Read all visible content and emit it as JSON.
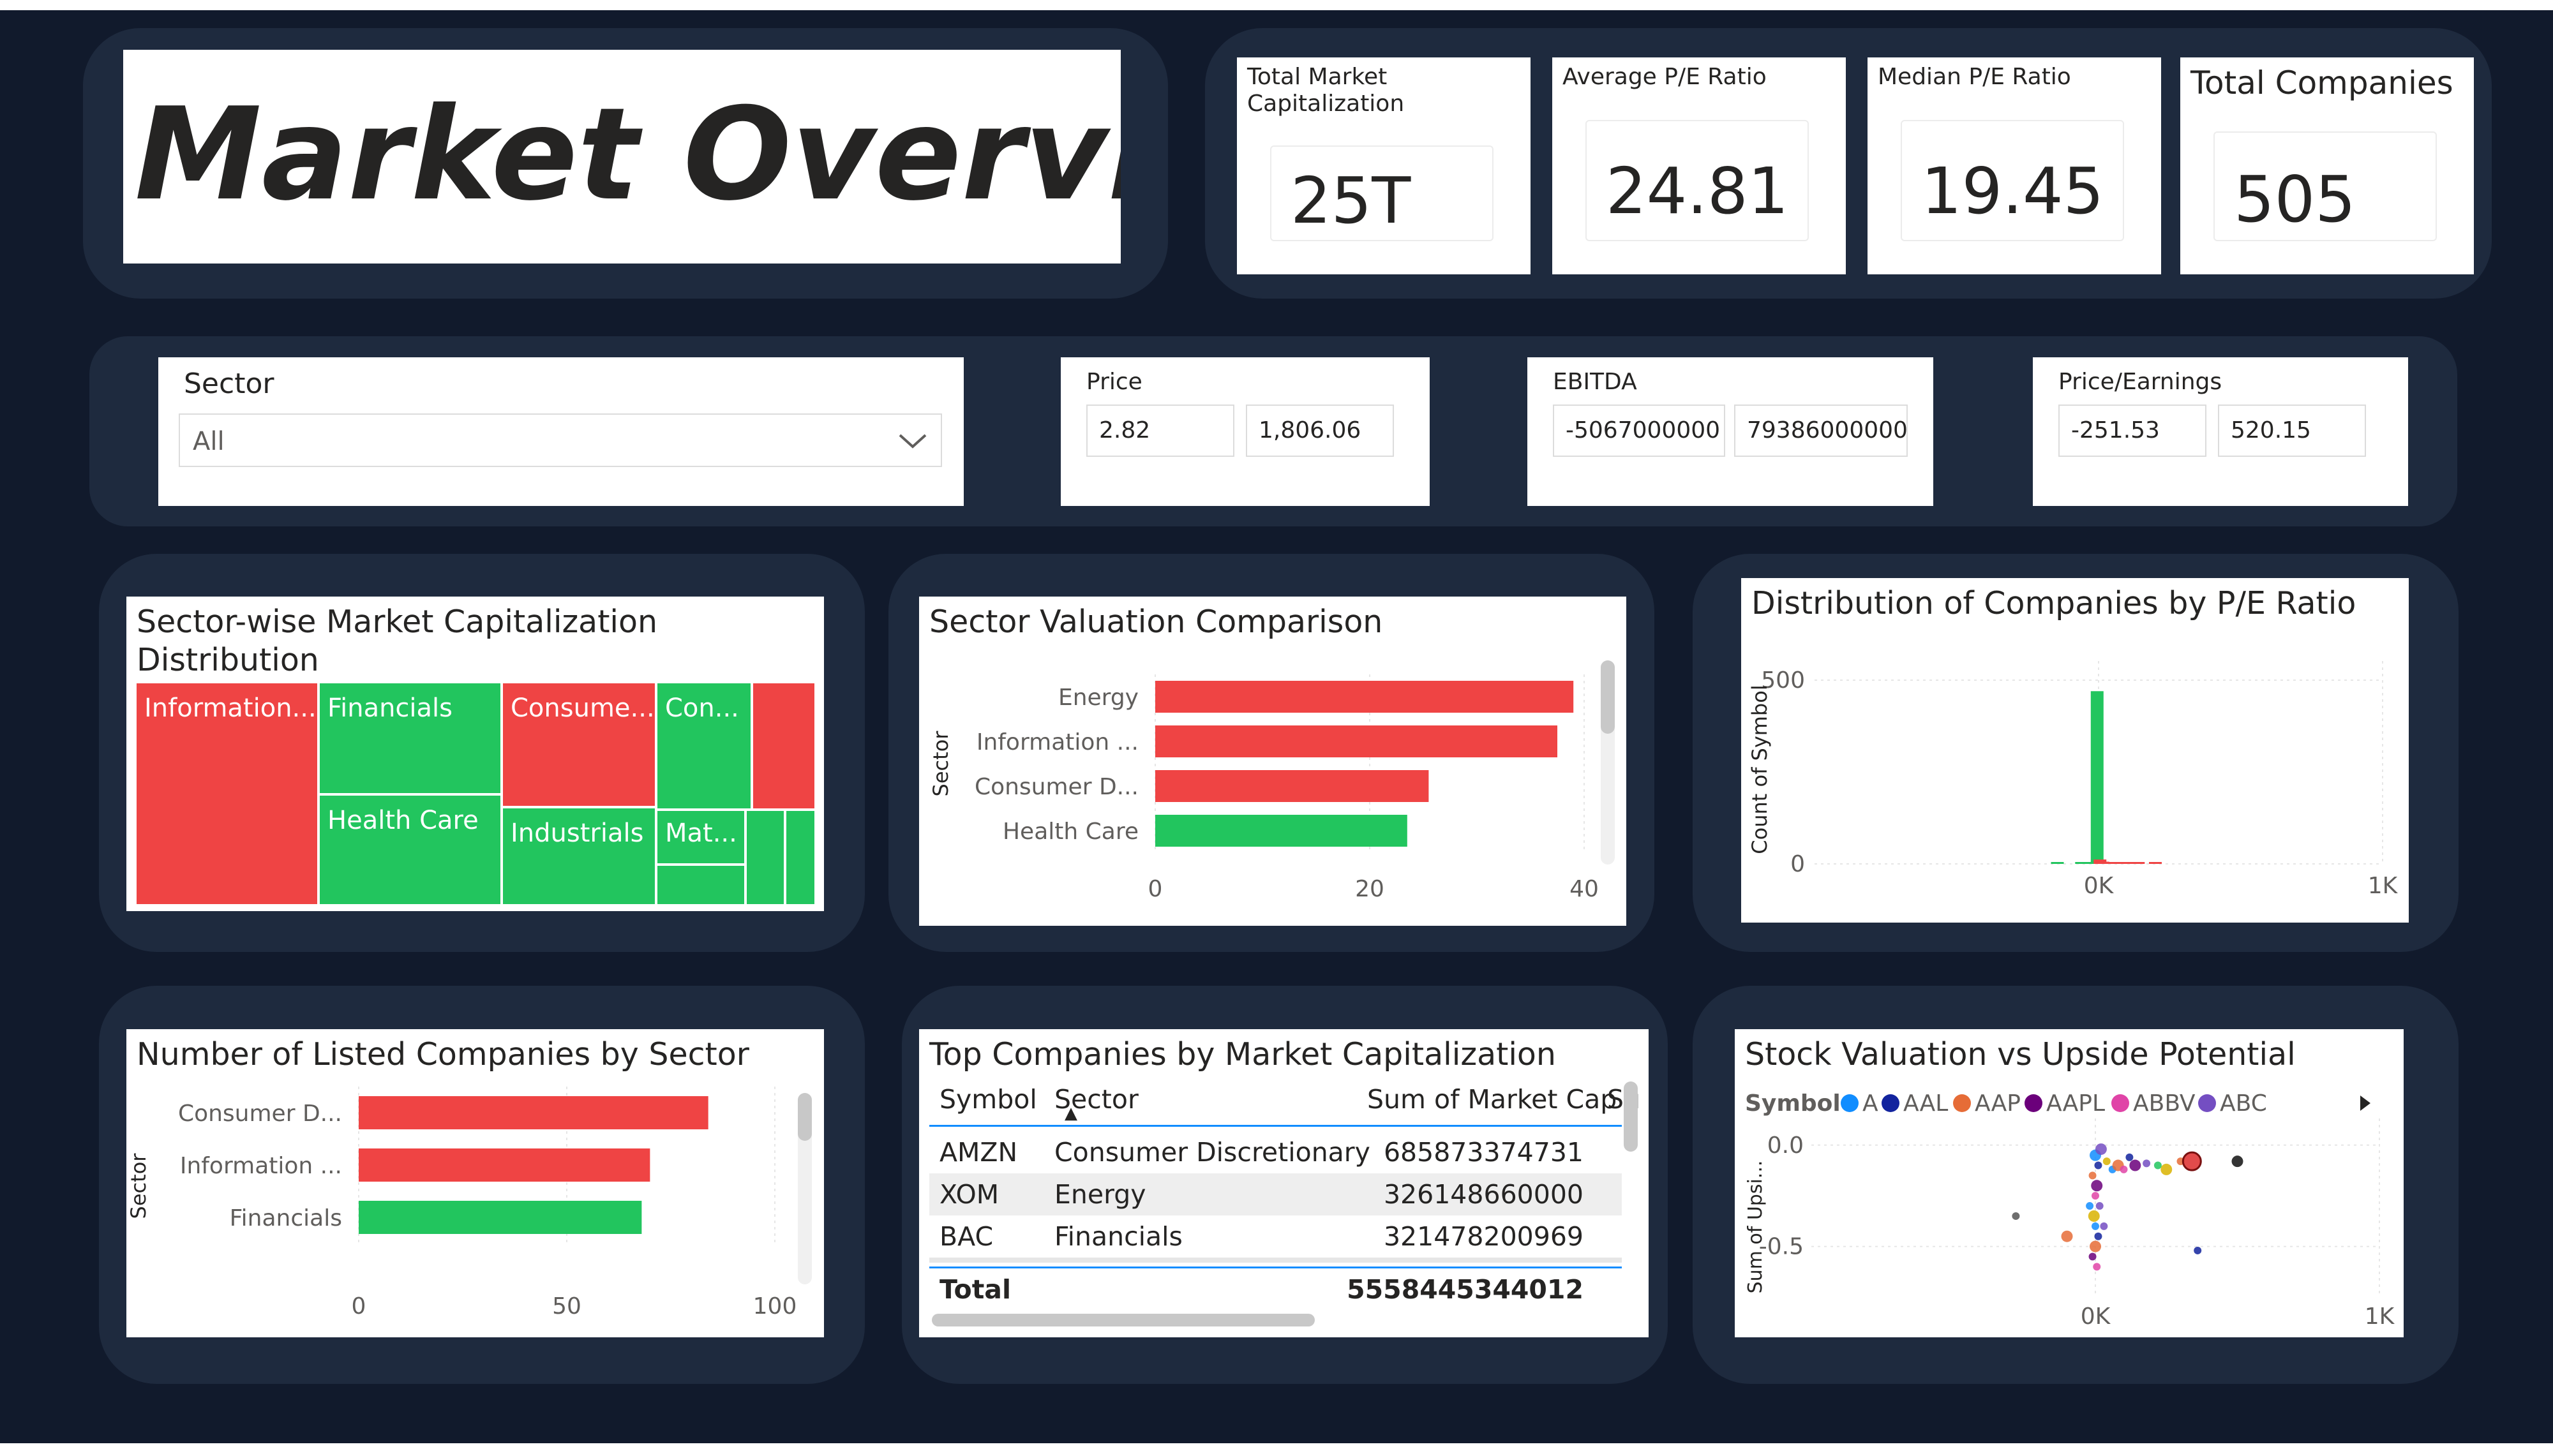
{
  "title": "Market Overview",
  "kpis": [
    {
      "label": "Total Market Capitalization",
      "value": "25T"
    },
    {
      "label": "Average P/E Ratio",
      "value": "24.81"
    },
    {
      "label": "Median P/E Ratio",
      "value": "19.45"
    },
    {
      "label": "Total Companies",
      "value": "505"
    }
  ],
  "slicers": {
    "sector": {
      "label": "Sector",
      "value": "All"
    },
    "price": {
      "label": "Price",
      "min": "2.82",
      "max": "1,806.06"
    },
    "ebitda": {
      "label": "EBITDA",
      "min": "-5067000000",
      "max": "79386000000"
    },
    "pe": {
      "label": "Price/Earnings",
      "min": "-251.53",
      "max": "520.15"
    }
  },
  "colors": {
    "red": "#ef4444",
    "green": "#22c55e",
    "panel": "#1e2a3e",
    "background": "#111a2c"
  },
  "treemap": {
    "title": "Sector-wise Market Capitalization Distribution",
    "tiles": [
      {
        "label": "Information...",
        "color": "red"
      },
      {
        "label": "Financials",
        "color": "green"
      },
      {
        "label": "Health Care",
        "color": "green"
      },
      {
        "label": "Consume...",
        "color": "red"
      },
      {
        "label": "Industrials",
        "color": "green"
      },
      {
        "label": "Con...",
        "color": "green"
      },
      {
        "label": "",
        "color": "red"
      },
      {
        "label": "Mat...",
        "color": "green"
      },
      {
        "label": "",
        "color": "green"
      },
      {
        "label": "",
        "color": "green"
      },
      {
        "label": "",
        "color": "green"
      }
    ]
  },
  "chart_data": [
    {
      "type": "bar",
      "orientation": "horizontal",
      "title": "Sector Valuation Comparison",
      "ylabel": "Sector",
      "categories": [
        "Energy",
        "Information ...",
        "Consumer D...",
        "Health Care"
      ],
      "values": [
        39,
        37.5,
        25.5,
        23.5
      ],
      "bar_colors": [
        "red",
        "red",
        "red",
        "green"
      ],
      "xlim": [
        0,
        40
      ],
      "xticks": [
        "0",
        "20",
        "40"
      ]
    },
    {
      "type": "bar",
      "title": "Distribution of Companies by P/E Ratio",
      "ylabel": "Count of Symbol",
      "x": [
        -0.145,
        -0.06,
        -0.035,
        -0.015,
        -0.005,
        0.005,
        0.015,
        0.04,
        0.06,
        0.08,
        0.1,
        0.12,
        0.14,
        0.2
      ],
      "values": [
        2,
        2,
        2,
        3,
        470,
        12,
        6,
        4,
        3,
        2,
        2,
        2,
        1,
        4
      ],
      "bar_colors": [
        "green",
        "green",
        "green",
        "green",
        "green",
        "red",
        "red",
        "red",
        "red",
        "red",
        "red",
        "red",
        "red",
        "red"
      ],
      "ylim": [
        0,
        500
      ],
      "xlim": [
        -1,
        1
      ],
      "yticks": [
        "0",
        "500"
      ],
      "xticks": [
        "0K",
        "1K"
      ]
    },
    {
      "type": "bar",
      "orientation": "horizontal",
      "title": "Number of Listed Companies by Sector",
      "ylabel": "Sector",
      "categories": [
        "Consumer D...",
        "Information ...",
        "Financials"
      ],
      "values": [
        84,
        70,
        68
      ],
      "bar_colors": [
        "red",
        "red",
        "green"
      ],
      "xlim": [
        0,
        100
      ],
      "xticks": [
        "0",
        "50",
        "100"
      ]
    },
    {
      "type": "scatter",
      "title": "Stock Valuation vs Upside Potential",
      "ylabel": "Sum of Upsi...",
      "legend_title": "Symbol",
      "legend": [
        {
          "name": "A",
          "color": "#118dff"
        },
        {
          "name": "AAL",
          "color": "#12239e"
        },
        {
          "name": "AAP",
          "color": "#e66c37"
        },
        {
          "name": "AAPL",
          "color": "#6b007b"
        },
        {
          "name": "ABBV",
          "color": "#e044a7"
        },
        {
          "name": "ABC",
          "color": "#744ec2"
        }
      ],
      "yticks": [
        "0.0",
        "-0.5"
      ],
      "xticks": [
        "0K",
        "1K"
      ],
      "xlim": [
        -1,
        1
      ],
      "ylim": [
        -0.75,
        0.1
      ],
      "points": [
        {
          "x": 0.0,
          "y": -0.05,
          "color": "#118dff"
        },
        {
          "x": 0.01,
          "y": -0.1,
          "color": "#12239e"
        },
        {
          "x": -0.01,
          "y": -0.15,
          "color": "#e66c37"
        },
        {
          "x": 0.005,
          "y": -0.2,
          "color": "#6b007b"
        },
        {
          "x": 0.0,
          "y": -0.25,
          "color": "#e044a7"
        },
        {
          "x": 0.015,
          "y": -0.3,
          "color": "#744ec2"
        },
        {
          "x": -0.005,
          "y": -0.35,
          "color": "#d9b300"
        },
        {
          "x": 0.0,
          "y": -0.4,
          "color": "#118dff"
        },
        {
          "x": 0.01,
          "y": -0.45,
          "color": "#12239e"
        },
        {
          "x": 0.0,
          "y": -0.5,
          "color": "#e66c37"
        },
        {
          "x": -0.01,
          "y": -0.55,
          "color": "#6b007b"
        },
        {
          "x": 0.005,
          "y": -0.6,
          "color": "#e044a7"
        },
        {
          "x": 0.02,
          "y": -0.02,
          "color": "#744ec2"
        },
        {
          "x": 0.04,
          "y": -0.08,
          "color": "#d9b300"
        },
        {
          "x": 0.06,
          "y": -0.12,
          "color": "#118dff"
        },
        {
          "x": 0.08,
          "y": -0.1,
          "color": "#e66c37"
        },
        {
          "x": 0.1,
          "y": -0.12,
          "color": "#e044a7"
        },
        {
          "x": 0.12,
          "y": -0.06,
          "color": "#12239e"
        },
        {
          "x": 0.14,
          "y": -0.1,
          "color": "#6b007b"
        },
        {
          "x": 0.18,
          "y": -0.09,
          "color": "#744ec2"
        },
        {
          "x": 0.22,
          "y": -0.1,
          "color": "#22c55e"
        },
        {
          "x": 0.25,
          "y": -0.12,
          "color": "#d9b300"
        },
        {
          "x": 0.3,
          "y": -0.08,
          "color": "#e66c37"
        },
        {
          "x": 0.34,
          "y": -0.08,
          "color": "#dd2b2b"
        },
        {
          "x": 0.5,
          "y": -0.08,
          "color": "#111111"
        },
        {
          "x": -0.28,
          "y": -0.35,
          "color": "#555555"
        },
        {
          "x": 0.36,
          "y": -0.52,
          "color": "#12239e"
        },
        {
          "x": -0.1,
          "y": -0.45,
          "color": "#e66c37"
        },
        {
          "x": -0.02,
          "y": -0.3,
          "color": "#118dff"
        },
        {
          "x": 0.03,
          "y": -0.4,
          "color": "#744ec2"
        }
      ]
    }
  ],
  "table": {
    "title": "Top Companies by Market Capitalization",
    "columns": [
      "Symbol",
      "Sector",
      "Sum of Market Cap",
      "Su"
    ],
    "rows": [
      {
        "symbol": "AMZN",
        "sector": "Consumer Discretionary",
        "cap": "685873374731"
      },
      {
        "symbol": "XOM",
        "sector": "Energy",
        "cap": "326148660000"
      },
      {
        "symbol": "BAC",
        "sector": "Financials",
        "cap": "321478200969"
      }
    ],
    "total_label": "Total",
    "total_value": "5558445344012"
  }
}
